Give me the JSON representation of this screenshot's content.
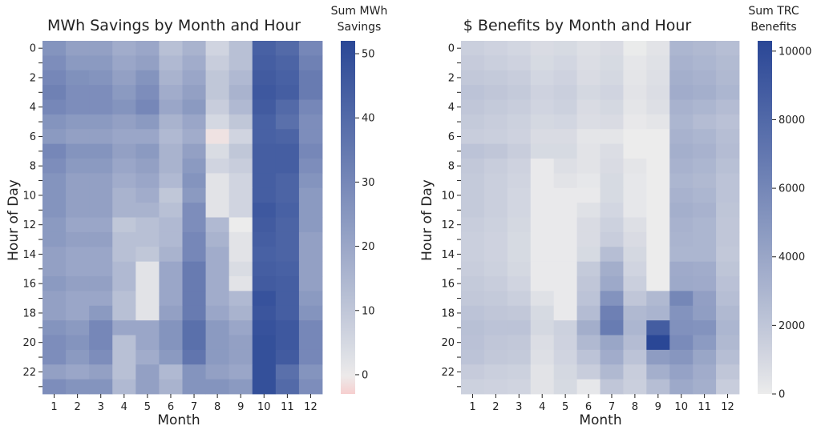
{
  "chart_data": [
    {
      "type": "heatmap",
      "title": "MWh Savings by Month and Hour",
      "xlabel": "Month",
      "ylabel": "Hour of Day",
      "colorbar_label": [
        "Sum MWh",
        "Savings"
      ],
      "x": [
        1,
        2,
        3,
        4,
        5,
        6,
        7,
        8,
        9,
        10,
        11,
        12
      ],
      "y": [
        0,
        1,
        2,
        3,
        4,
        5,
        6,
        7,
        8,
        9,
        10,
        11,
        12,
        13,
        14,
        15,
        16,
        17,
        18,
        19,
        20,
        21,
        22,
        23
      ],
      "y_tick_labels": [
        "0",
        "2",
        "4",
        "6",
        "8",
        "10",
        "12",
        "14",
        "16",
        "18",
        "20",
        "22"
      ],
      "colorbar_ticks": [
        0,
        10,
        20,
        30,
        40,
        50
      ],
      "vmin": -3,
      "vmax": 52,
      "colormap": {
        "low": "#f6cfcf",
        "mid": "#ececec",
        "high": "#2a4796"
      },
      "values": [
        [
          26,
          22,
          22,
          18,
          20,
          12,
          16,
          6,
          12,
          43,
          40,
          30
        ],
        [
          28,
          24,
          24,
          20,
          22,
          14,
          18,
          8,
          12,
          44,
          42,
          32
        ],
        [
          30,
          27,
          26,
          22,
          26,
          16,
          20,
          10,
          14,
          45,
          43,
          34
        ],
        [
          32,
          28,
          28,
          24,
          28,
          18,
          22,
          10,
          16,
          46,
          44,
          34
        ],
        [
          30,
          28,
          28,
          26,
          30,
          20,
          24,
          8,
          14,
          45,
          40,
          30
        ],
        [
          26,
          24,
          24,
          22,
          24,
          16,
          20,
          5,
          10,
          43,
          38,
          28
        ],
        [
          24,
          22,
          22,
          20,
          20,
          14,
          18,
          -1,
          6,
          43,
          42,
          28
        ],
        [
          30,
          26,
          26,
          22,
          24,
          16,
          22,
          4,
          10,
          44,
          44,
          30
        ],
        [
          28,
          24,
          24,
          20,
          22,
          16,
          24,
          6,
          8,
          44,
          44,
          28
        ],
        [
          26,
          22,
          22,
          18,
          20,
          14,
          26,
          2,
          6,
          44,
          42,
          26
        ],
        [
          26,
          22,
          22,
          16,
          18,
          10,
          24,
          2,
          6,
          44,
          42,
          24
        ],
        [
          26,
          22,
          22,
          16,
          16,
          12,
          28,
          2,
          6,
          46,
          43,
          24
        ],
        [
          24,
          20,
          20,
          10,
          12,
          14,
          28,
          14,
          0,
          45,
          42,
          24
        ],
        [
          24,
          22,
          22,
          12,
          12,
          14,
          30,
          16,
          2,
          44,
          42,
          22
        ],
        [
          22,
          20,
          20,
          12,
          10,
          16,
          30,
          18,
          2,
          43,
          42,
          22
        ],
        [
          22,
          20,
          20,
          14,
          2,
          20,
          34,
          18,
          4,
          44,
          43,
          22
        ],
        [
          24,
          22,
          22,
          14,
          2,
          20,
          34,
          18,
          2,
          45,
          44,
          22
        ],
        [
          22,
          20,
          20,
          12,
          2,
          20,
          34,
          18,
          14,
          48,
          44,
          24
        ],
        [
          22,
          20,
          24,
          12,
          2,
          22,
          34,
          20,
          16,
          47,
          44,
          26
        ],
        [
          26,
          24,
          30,
          20,
          20,
          26,
          38,
          24,
          20,
          48,
          46,
          30
        ],
        [
          28,
          26,
          30,
          12,
          20,
          26,
          38,
          24,
          22,
          49,
          46,
          30
        ],
        [
          28,
          24,
          28,
          12,
          18,
          24,
          36,
          24,
          22,
          49,
          45,
          30
        ],
        [
          22,
          20,
          22,
          12,
          22,
          14,
          26,
          22,
          20,
          49,
          38,
          26
        ],
        [
          28,
          26,
          26,
          14,
          22,
          16,
          26,
          26,
          24,
          49,
          40,
          28
        ]
      ]
    },
    {
      "type": "heatmap",
      "title": "$ Benefits by Month and Hour",
      "xlabel": "Month",
      "ylabel": "Hour of Day",
      "colorbar_label": [
        "Sum TRC",
        "Benefits"
      ],
      "x": [
        1,
        2,
        3,
        4,
        5,
        6,
        7,
        8,
        9,
        10,
        11,
        12
      ],
      "y": [
        0,
        1,
        2,
        3,
        4,
        5,
        6,
        7,
        8,
        9,
        10,
        11,
        12,
        13,
        14,
        15,
        16,
        17,
        18,
        19,
        20,
        21,
        22,
        23
      ],
      "y_tick_labels": [
        "0",
        "2",
        "4",
        "6",
        "8",
        "10",
        "12",
        "14",
        "16",
        "18",
        "20",
        "22"
      ],
      "colorbar_ticks": [
        0,
        2000,
        4000,
        6000,
        8000,
        10000
      ],
      "vmin": 0,
      "vmax": 10300,
      "colormap": {
        "low": "#ececec",
        "high": "#2a4796"
      },
      "values": [
        [
          1500,
          1300,
          1100,
          800,
          900,
          600,
          800,
          50,
          400,
          3000,
          2800,
          2500
        ],
        [
          1700,
          1500,
          1300,
          900,
          1100,
          700,
          900,
          250,
          500,
          3200,
          3000,
          2700
        ],
        [
          1900,
          1800,
          1600,
          1100,
          1300,
          800,
          1000,
          300,
          600,
          3400,
          3200,
          2800
        ],
        [
          2200,
          2000,
          1800,
          1300,
          1500,
          1000,
          1200,
          400,
          700,
          3600,
          3400,
          3000
        ],
        [
          2000,
          1800,
          1600,
          1200,
          1400,
          800,
          1000,
          300,
          600,
          3200,
          3000,
          2600
        ],
        [
          1800,
          1600,
          1400,
          1000,
          1100,
          700,
          800,
          150,
          300,
          3000,
          2600,
          2300
        ],
        [
          1600,
          1500,
          1300,
          800,
          800,
          300,
          300,
          0,
          0,
          3200,
          3000,
          2500
        ],
        [
          2200,
          2000,
          1600,
          900,
          900,
          400,
          700,
          0,
          0,
          3400,
          3200,
          2600
        ],
        [
          1900,
          1600,
          1300,
          100,
          600,
          400,
          800,
          300,
          0,
          3200,
          3000,
          2400
        ],
        [
          1800,
          1500,
          1200,
          100,
          400,
          200,
          900,
          200,
          0,
          3000,
          2800,
          2200
        ],
        [
          1800,
          1500,
          1100,
          100,
          100,
          100,
          900,
          200,
          0,
          3200,
          3000,
          2200
        ],
        [
          1800,
          1500,
          1100,
          100,
          100,
          500,
          1100,
          200,
          0,
          3400,
          3200,
          2100
        ],
        [
          1600,
          1400,
          1000,
          100,
          100,
          800,
          1400,
          600,
          0,
          3200,
          3000,
          2000
        ],
        [
          1500,
          1300,
          900,
          100,
          100,
          800,
          1600,
          800,
          0,
          3100,
          3000,
          2000
        ],
        [
          1500,
          1300,
          900,
          100,
          100,
          900,
          2500,
          1000,
          0,
          3000,
          3000,
          1900
        ],
        [
          1600,
          1400,
          1000,
          100,
          100,
          1800,
          3500,
          1200,
          0,
          3700,
          3600,
          2100
        ],
        [
          1800,
          1600,
          1200,
          100,
          100,
          2000,
          3800,
          1500,
          0,
          3800,
          3700,
          2300
        ],
        [
          1900,
          1800,
          1500,
          500,
          100,
          2200,
          5200,
          2000,
          2800,
          6000,
          4400,
          2500
        ],
        [
          2200,
          2000,
          1900,
          900,
          100,
          2600,
          6400,
          2800,
          3100,
          5200,
          4500,
          2800
        ],
        [
          2400,
          2200,
          2200,
          1000,
          1400,
          3500,
          6700,
          3000,
          8800,
          5300,
          5200,
          3000
        ],
        [
          2300,
          2000,
          1900,
          700,
          1300,
          2800,
          4000,
          2600,
          10300,
          5700,
          4700,
          2800
        ],
        [
          2200,
          1900,
          1800,
          600,
          1200,
          2200,
          3600,
          2200,
          4600,
          5000,
          4000,
          2500
        ],
        [
          1700,
          1500,
          1400,
          400,
          1000,
          1600,
          2800,
          1600,
          3400,
          4200,
          3600,
          2000
        ],
        [
          1400,
          1300,
          1200,
          400,
          900,
          200,
          2000,
          1500,
          2500,
          3800,
          3400,
          1600
        ]
      ]
    }
  ]
}
